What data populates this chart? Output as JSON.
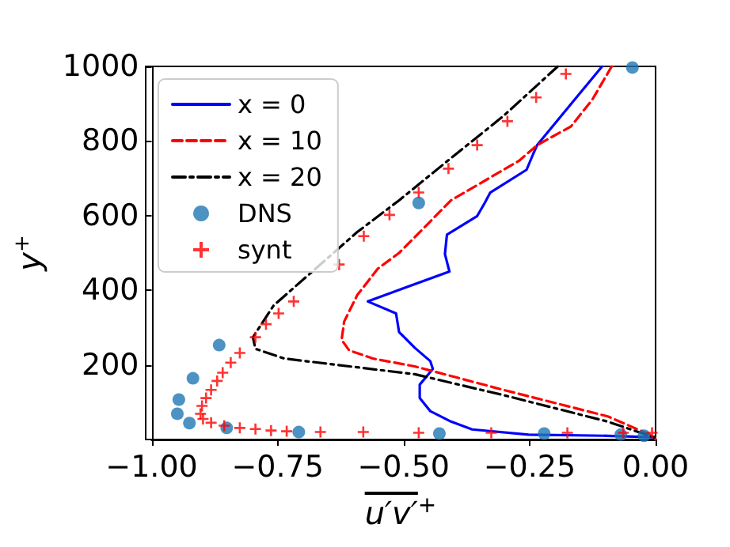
{
  "chart_data": {
    "type": "line",
    "xlabel": "u′v′$^{+}$",
    "ylabel": "y$^{+}$",
    "xlim": [
      -1,
      0
    ],
    "xticks": [
      {
        "value": -1,
        "label": "−1.00"
      },
      {
        "value": -0.75,
        "label": "−0.75"
      },
      {
        "value": -0.5,
        "label": "−0.50"
      },
      {
        "value": -0.25,
        "label": "−0.25"
      },
      {
        "value": 0,
        "label": "0.00"
      }
    ],
    "ylim": [
      0,
      1000
    ],
    "yticks": [
      200,
      400,
      600,
      800,
      1000
    ],
    "grid": false,
    "legend": "top left",
    "series": [
      {
        "name": "x = 0",
        "color": "#0000ff",
        "line_style": "solid",
        "marker": "none",
        "x": [
          -0.106,
          -0.157,
          -0.235,
          -0.242,
          -0.256,
          -0.328,
          -0.339,
          -0.354,
          -0.414,
          -0.418,
          -0.409,
          -0.509,
          -0.571,
          -0.515,
          -0.509,
          -0.478,
          -0.447,
          -0.442,
          -0.468,
          -0.468,
          -0.447,
          -0.406,
          -0.364,
          -0.252,
          -0.096,
          -0.003,
          0
        ],
        "values": [
          1000,
          917,
          789,
          768,
          723,
          662,
          634,
          599,
          549,
          497,
          450,
          401,
          370,
          338,
          288,
          246,
          210,
          189,
          147,
          111,
          76,
          48,
          27,
          13,
          10,
          6,
          0
        ]
      },
      {
        "name": "x = 10",
        "color": "#ff0000",
        "line_style": "dashed",
        "marker": "none",
        "x": [
          -0.087,
          -0.126,
          -0.168,
          -0.235,
          -0.271,
          -0.406,
          -0.478,
          -0.509,
          -0.551,
          -0.592,
          -0.618,
          -0.623,
          -0.608,
          -0.561,
          -0.478,
          -0.302,
          -0.095,
          -0.003,
          0
        ],
        "values": [
          1000,
          910,
          839,
          789,
          747,
          641,
          542,
          500,
          458,
          387,
          316,
          267,
          239,
          217,
          196,
          133,
          62,
          8,
          0
        ]
      },
      {
        "name": "x = 20",
        "color": "#000000",
        "line_style": "dashdot",
        "marker": "none",
        "x": [
          -0.194,
          -0.302,
          -0.406,
          -0.509,
          -0.592,
          -0.758,
          -0.799,
          -0.794,
          -0.737,
          -0.478,
          -0.302,
          -0.095,
          -0.003,
          0
        ],
        "values": [
          1000,
          867,
          754,
          641,
          556,
          359,
          274,
          243,
          217,
          175,
          119,
          48,
          6,
          0
        ]
      },
      {
        "name": "DNS",
        "type": "scatter",
        "color": "#1f77b4",
        "marker": "circle",
        "x": [
          -0.946,
          -0.949,
          -0.925,
          -0.918,
          -0.866,
          -0.851,
          -0.708,
          -0.47,
          -0.429,
          -0.221,
          -0.046,
          -0.069,
          -0.023
        ],
        "values": [
          107,
          69,
          44,
          164,
          253,
          31,
          20,
          634,
          16,
          16,
          997,
          13,
          10
        ]
      },
      {
        "name": "synt",
        "type": "scatter",
        "color": "#ff0000",
        "marker": "cross",
        "x": [
          -0.178,
          -0.237,
          -0.294,
          -0.354,
          -0.411,
          -0.47,
          -0.528,
          -0.579,
          -0.628,
          -0.718,
          -0.748,
          -0.773,
          -0.794,
          -0.825,
          -0.843,
          -0.859,
          -0.87,
          -0.882,
          -0.892,
          -0.9,
          -0.903,
          -0.898,
          -0.882,
          -0.856,
          -0.825,
          -0.794,
          -0.763,
          -0.732,
          -0.665,
          -0.58,
          -0.47,
          -0.326,
          -0.175,
          -0.064,
          -0.007
        ],
        "values": [
          980,
          917,
          853,
          789,
          726,
          662,
          602,
          545,
          469,
          370,
          338,
          309,
          274,
          232,
          206,
          179,
          157,
          133,
          111,
          90,
          69,
          55,
          45,
          37,
          31,
          28,
          24,
          22,
          20,
          20,
          18,
          18,
          18,
          18,
          18
        ]
      }
    ]
  }
}
